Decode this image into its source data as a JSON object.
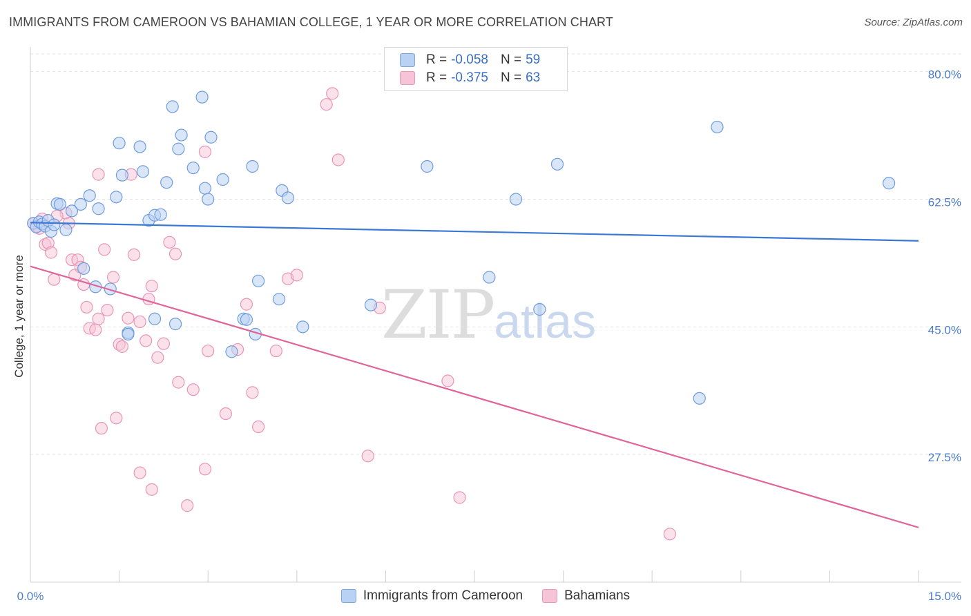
{
  "title": "IMMIGRANTS FROM CAMEROON VS BAHAMIAN COLLEGE, 1 YEAR OR MORE CORRELATION CHART",
  "source": "Source: ZipAtlas.com",
  "watermark": {
    "zip": "ZIP",
    "atlas": "atlas"
  },
  "colors": {
    "blue": "#3a78d4",
    "blue_fill": "#b9d1f3",
    "pink": "#e0649a",
    "pink_fill": "#f7c3d6",
    "tick_text": "#4a7cc7"
  },
  "legend_top": {
    "blue": {
      "r_label": "R =",
      "r_value": "-0.058",
      "n_label": "N =",
      "n_value": "59"
    },
    "pink": {
      "r_label": "R =",
      "r_value": "-0.375",
      "n_label": "N =",
      "n_value": "63"
    }
  },
  "chart_data": {
    "type": "scatter",
    "title": "IMMIGRANTS FROM CAMEROON VS BAHAMIAN COLLEGE, 1 YEAR OR MORE CORRELATION CHART",
    "ylabel": "College, 1 year or more",
    "xlabel": "",
    "xlim": [
      0,
      15
    ],
    "ylim": [
      10,
      83
    ],
    "x_tick_labels": {
      "min": "0.0%",
      "max": "15.0%"
    },
    "y_ticks": [
      {
        "value": 80,
        "label": "80.0%"
      },
      {
        "value": 62.5,
        "label": "62.5%"
      },
      {
        "value": 45,
        "label": "45.0%"
      },
      {
        "value": 27.5,
        "label": "27.5%"
      }
    ],
    "grid": true,
    "legend_position": "bottom",
    "series": [
      {
        "name": "Immigrants from Cameroon",
        "r": -0.058,
        "n": 59,
        "trend": {
          "x": [
            0,
            15
          ],
          "y": [
            59.3,
            56.8
          ]
        },
        "points": [
          [
            0.05,
            59.2
          ],
          [
            0.1,
            58.7
          ],
          [
            0.15,
            59.4
          ],
          [
            0.2,
            59.1
          ],
          [
            0.25,
            58.8
          ],
          [
            0.3,
            59.6
          ],
          [
            0.35,
            58.1
          ],
          [
            0.45,
            61.9
          ],
          [
            0.5,
            61.8
          ],
          [
            0.6,
            58.3
          ],
          [
            0.7,
            60.9
          ],
          [
            0.85,
            61.8
          ],
          [
            1.0,
            63.0
          ],
          [
            1.15,
            61.2
          ],
          [
            1.5,
            70.2
          ],
          [
            1.55,
            65.8
          ],
          [
            1.85,
            69.7
          ],
          [
            1.9,
            66.3
          ],
          [
            2.0,
            59.6
          ],
          [
            2.1,
            60.3
          ],
          [
            2.2,
            60.4
          ],
          [
            2.3,
            64.8
          ],
          [
            2.4,
            75.2
          ],
          [
            2.5,
            69.4
          ],
          [
            2.55,
            71.3
          ],
          [
            2.75,
            66.8
          ],
          [
            2.9,
            76.5
          ],
          [
            2.95,
            64.0
          ],
          [
            3.05,
            71.0
          ],
          [
            3.25,
            65.2
          ],
          [
            3.75,
            67.0
          ],
          [
            4.25,
            63.7
          ],
          [
            4.35,
            62.7
          ],
          [
            6.7,
            67.0
          ],
          [
            8.2,
            62.5
          ],
          [
            8.9,
            67.3
          ],
          [
            11.6,
            72.4
          ],
          [
            14.5,
            64.7
          ],
          [
            0.9,
            53.0
          ],
          [
            1.1,
            50.5
          ],
          [
            1.35,
            50.2
          ],
          [
            1.65,
            44.2
          ],
          [
            1.65,
            44.0
          ],
          [
            2.1,
            46.1
          ],
          [
            2.45,
            45.4
          ],
          [
            3.0,
            62.5
          ],
          [
            3.4,
            41.6
          ],
          [
            3.6,
            46.1
          ],
          [
            3.65,
            46.0
          ],
          [
            3.8,
            44.0
          ],
          [
            3.85,
            51.3
          ],
          [
            4.2,
            48.8
          ],
          [
            4.6,
            45.0
          ],
          [
            5.75,
            48.0
          ],
          [
            7.75,
            51.8
          ],
          [
            8.6,
            47.4
          ],
          [
            11.3,
            35.2
          ],
          [
            1.45,
            62.8
          ],
          [
            0.4,
            59.0
          ]
        ]
      },
      {
        "name": "Bahamians",
        "r": -0.375,
        "n": 63,
        "trend": {
          "x": [
            0,
            15
          ],
          "y": [
            53.3,
            17.5
          ]
        },
        "points": [
          [
            0.05,
            59.2
          ],
          [
            0.1,
            58.8
          ],
          [
            0.15,
            58.5
          ],
          [
            0.2,
            59.8
          ],
          [
            0.25,
            56.3
          ],
          [
            0.3,
            56.5
          ],
          [
            0.35,
            55.2
          ],
          [
            0.4,
            51.5
          ],
          [
            0.6,
            60.6
          ],
          [
            0.65,
            59.2
          ],
          [
            0.7,
            54.2
          ],
          [
            0.75,
            52.1
          ],
          [
            0.8,
            54.2
          ],
          [
            0.85,
            53.2
          ],
          [
            0.9,
            50.8
          ],
          [
            0.95,
            47.7
          ],
          [
            1.0,
            44.8
          ],
          [
            1.1,
            44.6
          ],
          [
            1.15,
            46.1
          ],
          [
            1.25,
            55.6
          ],
          [
            1.3,
            47.3
          ],
          [
            1.4,
            51.8
          ],
          [
            1.5,
            42.6
          ],
          [
            1.55,
            42.3
          ],
          [
            1.65,
            46.2
          ],
          [
            1.7,
            65.9
          ],
          [
            1.75,
            54.9
          ],
          [
            1.85,
            45.7
          ],
          [
            1.95,
            43.1
          ],
          [
            2.0,
            48.8
          ],
          [
            2.05,
            50.6
          ],
          [
            2.15,
            40.8
          ],
          [
            2.25,
            42.7
          ],
          [
            2.35,
            56.6
          ],
          [
            2.45,
            55.0
          ],
          [
            2.5,
            37.4
          ],
          [
            2.75,
            36.4
          ],
          [
            2.95,
            69.0
          ],
          [
            3.0,
            41.7
          ],
          [
            3.3,
            33.1
          ],
          [
            3.5,
            41.9
          ],
          [
            3.65,
            48.1
          ],
          [
            3.75,
            36.0
          ],
          [
            3.85,
            31.3
          ],
          [
            4.15,
            41.7
          ],
          [
            4.35,
            51.6
          ],
          [
            4.5,
            52.1
          ],
          [
            5.0,
            75.5
          ],
          [
            5.1,
            77.0
          ],
          [
            5.2,
            67.9
          ],
          [
            5.7,
            27.3
          ],
          [
            5.9,
            47.6
          ],
          [
            7.05,
            37.6
          ],
          [
            7.25,
            21.6
          ],
          [
            10.8,
            16.6
          ],
          [
            1.2,
            31.1
          ],
          [
            1.45,
            32.5
          ],
          [
            1.85,
            25.0
          ],
          [
            2.05,
            22.7
          ],
          [
            2.65,
            20.5
          ],
          [
            2.95,
            25.5
          ],
          [
            1.15,
            65.9
          ],
          [
            0.45,
            60.2
          ]
        ]
      }
    ]
  }
}
